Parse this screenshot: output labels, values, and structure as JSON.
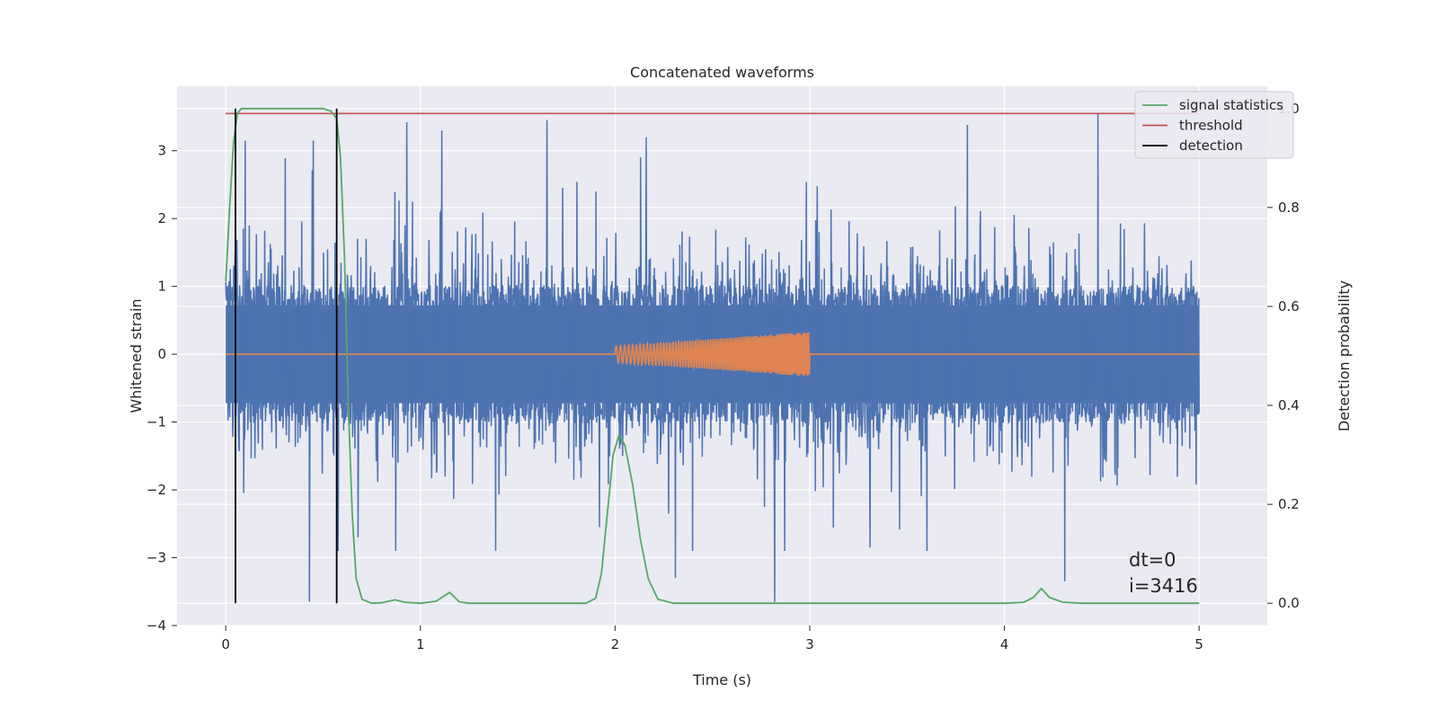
{
  "chart_data": {
    "type": "line",
    "title": "Concatenated waveforms",
    "xlabel": "Time (s)",
    "ylabel": "Whitened strain",
    "y2label": "Detection probability",
    "xlim": [
      -0.25,
      5.35
    ],
    "ylim": [
      -4.0,
      3.95
    ],
    "y2lim": [
      -0.045,
      1.045
    ],
    "xticks": [
      0,
      1,
      2,
      3,
      4,
      5
    ],
    "yticks": [
      -4,
      -3,
      -2,
      -1,
      0,
      1,
      2,
      3
    ],
    "y2ticks": [
      0.0,
      0.2,
      0.4,
      0.6,
      0.8,
      1.0
    ],
    "grid": true,
    "legend_position": "top-right",
    "legend": [
      "signal statistics",
      "threshold",
      "detection"
    ],
    "annotations": [
      "dt=0",
      "i=3416"
    ],
    "colors": {
      "strain": "#4c72b0",
      "template": "#dd8452",
      "signal_statistics": "#55a868",
      "threshold": "#c44e52",
      "detection": "#000000",
      "background": "#eaeaf2"
    },
    "strain": {
      "x_range": [
        0.0,
        5.0
      ],
      "typical_band": [
        -0.72,
        0.72
      ],
      "spikes": [
        {
          "x": 0.43,
          "y": -3.65
        },
        {
          "x": 0.1,
          "y": 3.15
        },
        {
          "x": 0.45,
          "y": 3.15
        },
        {
          "x": 0.93,
          "y": 3.42
        },
        {
          "x": 1.11,
          "y": 3.3
        },
        {
          "x": 1.65,
          "y": 3.45
        },
        {
          "x": 2.16,
          "y": 3.2
        },
        {
          "x": 2.82,
          "y": -3.65
        },
        {
          "x": 3.81,
          "y": 3.38
        },
        {
          "x": 4.48,
          "y": 3.55
        },
        {
          "x": 4.31,
          "y": -3.35
        },
        {
          "x": 2.31,
          "y": -3.3
        },
        {
          "x": 0.68,
          "y": -2.7
        },
        {
          "x": 1.92,
          "y": -2.55
        },
        {
          "x": 3.31,
          "y": -2.85
        }
      ]
    },
    "template": {
      "start": 2.0,
      "end": 3.0,
      "amplitude_start": 0.12,
      "amplitude_end": 0.33,
      "cycles": 80
    },
    "signal_statistics": [
      [
        0.0,
        0.65
      ],
      [
        0.02,
        0.8
      ],
      [
        0.04,
        0.93
      ],
      [
        0.06,
        0.99
      ],
      [
        0.08,
        1.0
      ],
      [
        0.5,
        1.0
      ],
      [
        0.54,
        0.995
      ],
      [
        0.57,
        0.98
      ],
      [
        0.59,
        0.9
      ],
      [
        0.61,
        0.7
      ],
      [
        0.63,
        0.4
      ],
      [
        0.65,
        0.18
      ],
      [
        0.67,
        0.05
      ],
      [
        0.7,
        0.008
      ],
      [
        0.75,
        0.0
      ],
      [
        0.8,
        0.001
      ],
      [
        0.87,
        0.007
      ],
      [
        0.92,
        0.002
      ],
      [
        1.0,
        0.0
      ],
      [
        1.08,
        0.004
      ],
      [
        1.15,
        0.022
      ],
      [
        1.2,
        0.003
      ],
      [
        1.25,
        0.0
      ],
      [
        1.85,
        0.0
      ],
      [
        1.9,
        0.01
      ],
      [
        1.93,
        0.06
      ],
      [
        1.96,
        0.18
      ],
      [
        1.99,
        0.3
      ],
      [
        2.02,
        0.34
      ],
      [
        2.05,
        0.32
      ],
      [
        2.09,
        0.24
      ],
      [
        2.13,
        0.13
      ],
      [
        2.17,
        0.05
      ],
      [
        2.22,
        0.008
      ],
      [
        2.3,
        0.0
      ],
      [
        3.5,
        0.0
      ],
      [
        4.0,
        0.0
      ],
      [
        4.1,
        0.002
      ],
      [
        4.15,
        0.012
      ],
      [
        4.19,
        0.03
      ],
      [
        4.23,
        0.012
      ],
      [
        4.3,
        0.002
      ],
      [
        4.4,
        0.0
      ],
      [
        5.0,
        0.0
      ]
    ],
    "threshold": {
      "value": 0.99,
      "x_range": [
        0.0,
        5.0
      ]
    },
    "detections": [
      0.05,
      0.57
    ]
  }
}
